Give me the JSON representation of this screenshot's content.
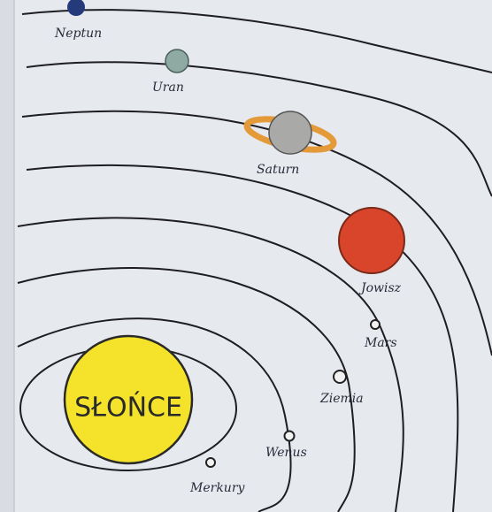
{
  "sun": "SŁOŃCE",
  "planets": [
    {
      "label": "Merkury"
    },
    {
      "label": "Wenus"
    },
    {
      "label": "Ziemia"
    },
    {
      "label": "Mars"
    },
    {
      "label": "Jowisz"
    },
    {
      "label": "Saturn"
    },
    {
      "label": "Uran"
    },
    {
      "label": "Neptun"
    }
  ]
}
